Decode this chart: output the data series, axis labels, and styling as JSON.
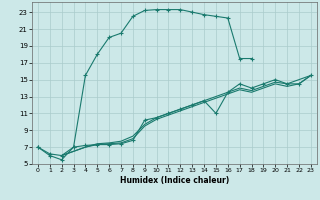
{
  "xlabel": "Humidex (Indice chaleur)",
  "background_color": "#cce8e8",
  "grid_color": "#aacccc",
  "line_color": "#1a7a6e",
  "xlim": [
    -0.5,
    23.5
  ],
  "ylim": [
    5,
    24.2
  ],
  "xticks": [
    0,
    1,
    2,
    3,
    4,
    5,
    6,
    7,
    8,
    9,
    10,
    11,
    12,
    13,
    14,
    15,
    16,
    17,
    18,
    19,
    20,
    21,
    22,
    23
  ],
  "yticks": [
    5,
    7,
    9,
    11,
    13,
    15,
    17,
    19,
    21,
    23
  ],
  "curve1_x": [
    0,
    1,
    2,
    3,
    4,
    5,
    6,
    7,
    8,
    9,
    10,
    11,
    12,
    13,
    14,
    15,
    16,
    17,
    18
  ],
  "curve1_y": [
    7,
    6,
    5.5,
    7,
    15.5,
    18,
    20,
    20.5,
    22.5,
    23.2,
    23.3,
    23.3,
    23.3,
    23.0,
    22.7,
    22.5,
    22.3,
    17.5,
    17.5
  ],
  "curve2_x": [
    0,
    1,
    2,
    3,
    4,
    5,
    6,
    7,
    8,
    9,
    10,
    11,
    12,
    13,
    14,
    15,
    16,
    17,
    18,
    19,
    20,
    21,
    22,
    23
  ],
  "curve2_y": [
    7.0,
    6.2,
    6.0,
    7.0,
    7.2,
    7.3,
    7.3,
    7.4,
    7.8,
    10.2,
    10.5,
    11.0,
    11.5,
    12.0,
    12.5,
    11.0,
    13.5,
    14.5,
    14.0,
    14.5,
    15.0,
    14.5,
    14.5,
    15.5
  ],
  "curve3_x": [
    2,
    3,
    4,
    5,
    6,
    7,
    8,
    9,
    10,
    11,
    12,
    13,
    14,
    15,
    16,
    17,
    18,
    19,
    20,
    21,
    22,
    23
  ],
  "curve3_y": [
    6.0,
    6.5,
    7.0,
    7.3,
    7.4,
    7.5,
    8.0,
    9.5,
    10.3,
    10.8,
    11.3,
    11.8,
    12.3,
    12.8,
    13.3,
    13.8,
    13.5,
    14.0,
    14.5,
    14.2,
    14.5,
    15.5
  ],
  "curve4_x": [
    2,
    3,
    4,
    5,
    6,
    7,
    8,
    9,
    10,
    11,
    12,
    13,
    14,
    15,
    16,
    17,
    18,
    19,
    20,
    21,
    22,
    23
  ],
  "curve4_y": [
    6.0,
    6.5,
    7.0,
    7.4,
    7.5,
    7.7,
    8.3,
    9.7,
    10.5,
    11.0,
    11.5,
    12.0,
    12.5,
    13.0,
    13.5,
    14.0,
    13.7,
    14.2,
    14.7,
    14.5,
    15.0,
    15.5
  ]
}
